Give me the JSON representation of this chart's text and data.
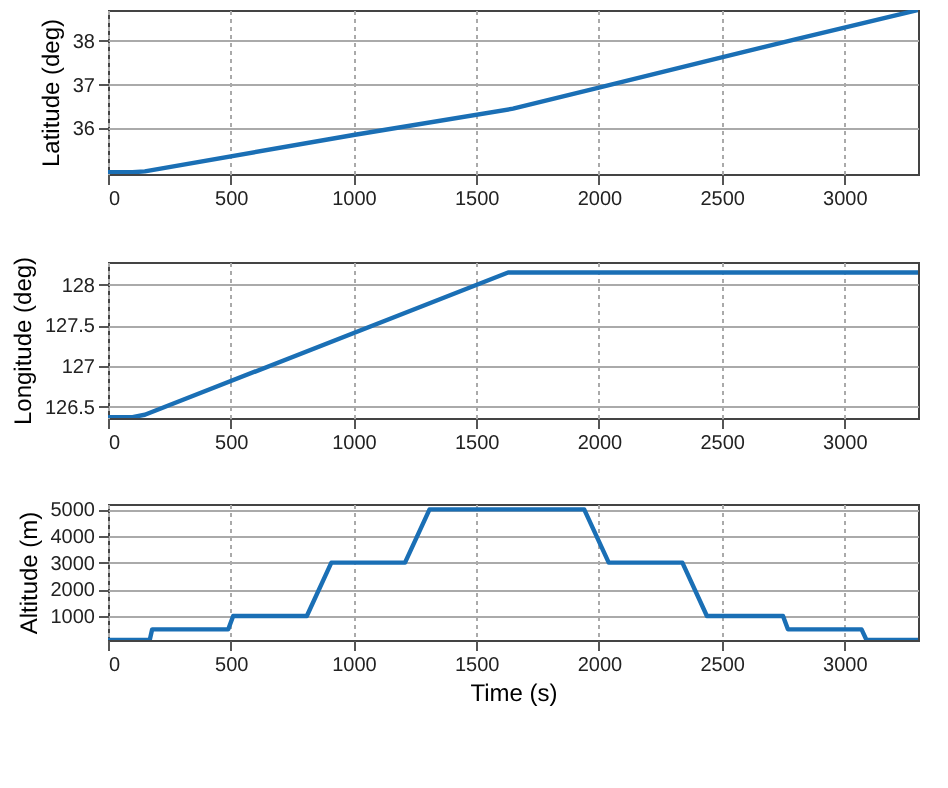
{
  "chart_data": [
    {
      "type": "line",
      "ylabel": "Latitude (deg)",
      "x": [
        0,
        100,
        150,
        1000,
        1650,
        2000,
        2500,
        2800,
        3300
      ],
      "xlim": [
        0,
        3300
      ],
      "xticks": [
        0,
        500,
        1000,
        1500,
        2000,
        2500,
        3000
      ],
      "ylim": [
        34.96,
        38.7
      ],
      "yticks": [
        36,
        37,
        38
      ],
      "grid": true,
      "series": [
        {
          "color": "#1a6fb5",
          "values": [
            35,
            35,
            35.02,
            35.85,
            36.45,
            36.93,
            37.62,
            38.03,
            38.7
          ]
        }
      ]
    },
    {
      "type": "line",
      "ylabel": "Longitude (deg)",
      "x": [
        0,
        100,
        150,
        1630,
        3300
      ],
      "xlim": [
        0,
        3300
      ],
      "xticks": [
        0,
        500,
        1000,
        1500,
        2000,
        2500,
        3000
      ],
      "ylim": [
        126.36,
        128.28
      ],
      "yticks": [
        126.5,
        127,
        127.5,
        128
      ],
      "grid": true,
      "series": [
        {
          "color": "#1a6fb5",
          "values": [
            126.37,
            126.37,
            126.4,
            128.15,
            128.15
          ]
        }
      ]
    },
    {
      "type": "line",
      "ylabel": "Altitude (m)",
      "xlabel": "Time (s)",
      "x": [
        0,
        170,
        180,
        490,
        510,
        810,
        910,
        1210,
        1310,
        1940,
        2040,
        2340,
        2440,
        2750,
        2770,
        3070,
        3090,
        3300
      ],
      "xlim": [
        0,
        3300
      ],
      "xticks": [
        0,
        500,
        1000,
        1500,
        2000,
        2500,
        3000
      ],
      "ylim": [
        100,
        5200
      ],
      "yticks": [
        1000,
        2000,
        3000,
        4000,
        5000
      ],
      "grid": true,
      "series": [
        {
          "color": "#1a6fb5",
          "values": [
            100,
            100,
            500,
            500,
            1000,
            1000,
            3000,
            3000,
            5000,
            5000,
            3000,
            3000,
            1000,
            1000,
            500,
            500,
            100,
            100
          ]
        }
      ]
    }
  ]
}
